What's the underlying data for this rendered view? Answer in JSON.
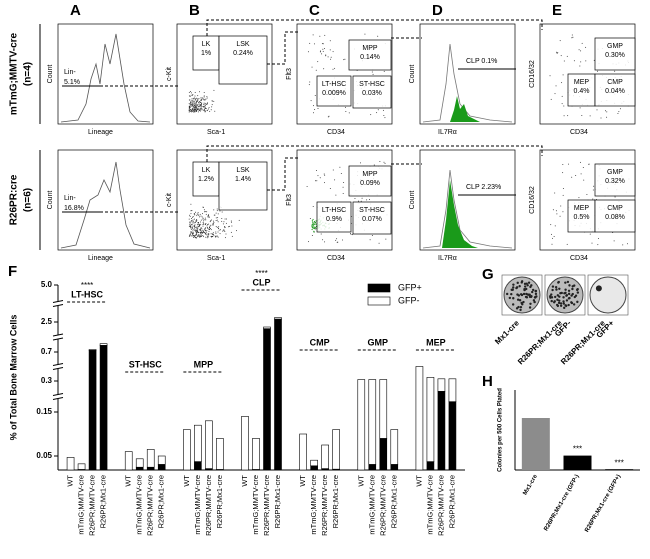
{
  "flow": {
    "panel_letters": [
      "A",
      "B",
      "C",
      "D",
      "E"
    ],
    "axes": [
      [
        "Count",
        "Lineage"
      ],
      [
        "c-Kit",
        "Sca-1"
      ],
      [
        "Flt3",
        "CD34"
      ],
      [
        "Count",
        "IL7Rα"
      ],
      [
        "CD16/32",
        "CD34"
      ]
    ],
    "rows": [
      {
        "label": "mTmG;MMTV-cre",
        "n": "(n=4)",
        "panels": [
          [
            {
              "label": "Lin-",
              "pct": "5.1%"
            }
          ],
          [
            {
              "label": "LK",
              "pct": "1%"
            },
            {
              "label": "LSK",
              "pct": "0.24%"
            }
          ],
          [
            {
              "label": "MPP",
              "pct": "0.14%"
            },
            {
              "label": "LT-HSC",
              "pct": "0.009%"
            },
            {
              "label": "ST-HSC",
              "pct": "0.03%"
            }
          ],
          [
            {
              "label": "CLP 0.1%"
            }
          ],
          [
            {
              "label": "GMP",
              "pct": "0.30%"
            },
            {
              "label": "MEP",
              "pct": "0.4%"
            },
            {
              "label": "CMP",
              "pct": "0.04%"
            }
          ]
        ]
      },
      {
        "label": "R26PR:cre",
        "n": "(n=6)",
        "panels": [
          [
            {
              "label": "Lin-",
              "pct": "16.8%"
            }
          ],
          [
            {
              "label": "LK",
              "pct": "1.2%"
            },
            {
              "label": "LSK",
              "pct": "1.4%"
            }
          ],
          [
            {
              "label": "MPP",
              "pct": "0.09%"
            },
            {
              "label": "LT-HSC",
              "pct": "0.9%"
            },
            {
              "label": "ST-HSC",
              "pct": "0.07%"
            }
          ],
          [
            {
              "label": "CLP 2.23%"
            }
          ],
          [
            {
              "label": "GMP",
              "pct": "0.32%"
            },
            {
              "label": "MEP",
              "pct": "0.5%"
            },
            {
              "label": "CMP",
              "pct": "0.08%"
            }
          ]
        ]
      }
    ]
  },
  "panel_G": {
    "letter": "G",
    "labels": [
      [
        "Mx1-cre"
      ],
      [
        "R26PR;Mx1-cre",
        "GFP-"
      ],
      [
        "R26PR;Mx1-cre",
        "GFP+"
      ]
    ]
  },
  "chart_data": [
    {
      "type": "stacked_bar",
      "panel_label": "F",
      "y_label": "% of Total Bone Marrow Cells",
      "categories": [
        "WT",
        "mTmG;MMTV-cre",
        "R26PR;MMTV-cre",
        "R26PR;Mx1-cre",
        "WT",
        "mTmG;MMTV-cre",
        "R26PR;MMTV-cre",
        "R26PR;Mx1-cre",
        "WT",
        "mTmG;MMTV-cre",
        "R26PR;MMTV-cre",
        "R26PR;Mx1-cre",
        "WT",
        "mTmG;MMTV-cre",
        "R26PR;MMTV-cre",
        "R26PR;Mx1-cre",
        "WT",
        "mTmG;MMTV-cre",
        "R26PR;MMTV-cre",
        "R26PR;Mx1-cre",
        "WT",
        "mTmG;MMTV-cre",
        "R26PR;MMTV-cre",
        "R26PR;Mx1-cre",
        "WT",
        "mTmG;MMTV-cre",
        "R26PR;MMTV-cre",
        "R26PR;Mx1-cre"
      ],
      "groups": [
        {
          "name": "LT-HSC",
          "annotation": "****"
        },
        {
          "name": "ST-HSC"
        },
        {
          "name": "MPP"
        },
        {
          "name": "CLP",
          "annotation": "****"
        },
        {
          "name": "CMP"
        },
        {
          "name": "GMP"
        },
        {
          "name": "MEP"
        }
      ],
      "series": [
        {
          "name": "GFP+",
          "color": "#000000",
          "values": [
            0,
            0.002,
            0.8,
            1.1,
            0,
            0.01,
            0.01,
            0.02,
            0,
            0.03,
            0.005,
            0.002,
            0,
            0.002,
            2.1,
            2.7,
            0,
            0.015,
            0.005,
            0.003,
            0,
            0.02,
            0.09,
            0.02,
            0,
            0.03,
            0.25,
            0.2
          ]
        },
        {
          "name": "GFP-",
          "color": "#ffffff",
          "values": [
            0.045,
            0.02,
            0.05,
            0.1,
            0.06,
            0.03,
            0.055,
            0.03,
            0.11,
            0.09,
            0.125,
            0.088,
            0.14,
            0.088,
            0.1,
            0.1,
            0.1,
            0.02,
            0.07,
            0.107,
            0.32,
            0.3,
            0.23,
            0.09,
            0.5,
            0.32,
            0.08,
            0.13
          ]
        }
      ],
      "ylim": [
        0,
        5
      ],
      "yticks": [
        0.05,
        0.15,
        0.3,
        0.7,
        2.5,
        {
          "value": 5,
          "label": "5.0"
        }
      ]
    },
    {
      "type": "bar",
      "panel_label": "H",
      "y_label": "Colonies per 500 Cells Plated",
      "categories": [
        "Mx1-cre",
        "R26PR;Mx1-cre (GFP-)",
        "R26PR;Mx1-cre (GFP+)"
      ],
      "values": [
        65,
        18,
        1
      ],
      "colors": [
        "#8c8c8c",
        "#000000",
        "#000000"
      ],
      "annotations": [
        null,
        "***",
        "***"
      ],
      "ylim": [
        0,
        100
      ]
    }
  ]
}
